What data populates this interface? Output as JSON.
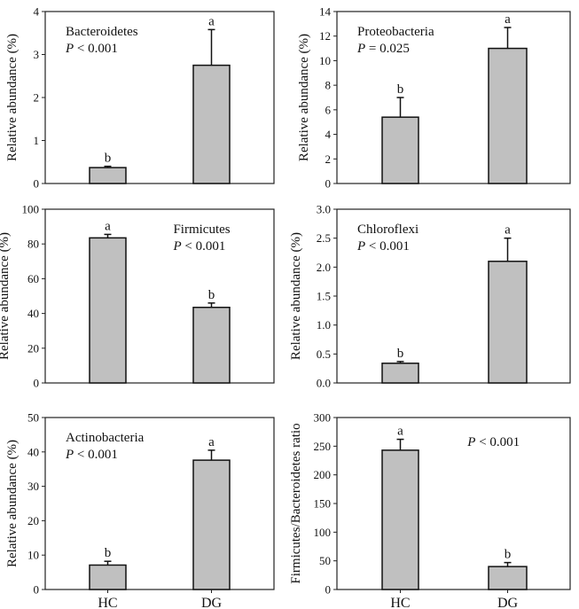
{
  "chart_data": [
    {
      "type": "bar",
      "panel": "bacteroidetes",
      "title": "Bacteroidetes",
      "p_value": "P < 0.001",
      "annotation_position": "top-left",
      "ylabel": "Relative abundance (%)",
      "ylim": [
        0,
        4
      ],
      "yticks": [
        "0",
        "1",
        "2",
        "3",
        "4"
      ],
      "categories": [
        "HC",
        "DG"
      ],
      "values": [
        0.37,
        2.75
      ],
      "error_upper": [
        0.4,
        3.58
      ],
      "sig_letters": [
        "b",
        "a"
      ],
      "show_xtick_labels": false
    },
    {
      "type": "bar",
      "panel": "proteobacteria",
      "title": "Proteobacteria",
      "p_value": "P = 0.025",
      "annotation_position": "top-left",
      "ylabel": "Relative abundance (%)",
      "ylim": [
        0,
        14
      ],
      "yticks": [
        "0",
        "2",
        "4",
        "6",
        "8",
        "10",
        "12",
        "14"
      ],
      "categories": [
        "HC",
        "DG"
      ],
      "values": [
        5.4,
        11.0
      ],
      "error_upper": [
        7.0,
        12.7
      ],
      "sig_letters": [
        "b",
        "a"
      ],
      "show_xtick_labels": false
    },
    {
      "type": "bar",
      "panel": "firmicutes",
      "title": "Firmicutes",
      "p_value": "P < 0.001",
      "annotation_position": "top-right",
      "ylabel": "Relative abundance (%)",
      "ylim": [
        0,
        100
      ],
      "yticks": [
        "0",
        "20",
        "40",
        "60",
        "80",
        "100"
      ],
      "categories": [
        "HC",
        "DG"
      ],
      "values": [
        83.5,
        43.5
      ],
      "error_upper": [
        85.5,
        46.0
      ],
      "sig_letters": [
        "a",
        "b"
      ],
      "show_xtick_labels": false
    },
    {
      "type": "bar",
      "panel": "chloroflexi",
      "title": "Chloroflexi",
      "p_value": "P < 0.001",
      "annotation_position": "top-left",
      "ylabel": "Relative abundance (%)",
      "ylim": [
        0,
        3.0
      ],
      "yticks": [
        "0.0",
        "0.5",
        "1.0",
        "1.5",
        "2.0",
        "2.5",
        "3.0"
      ],
      "categories": [
        "HC",
        "DG"
      ],
      "values": [
        0.34,
        2.1
      ],
      "error_upper": [
        0.37,
        2.5
      ],
      "sig_letters": [
        "b",
        "a"
      ],
      "show_xtick_labels": false
    },
    {
      "type": "bar",
      "panel": "actinobacteria",
      "title": "Actinobacteria",
      "p_value": "P < 0.001",
      "annotation_position": "top-left",
      "ylabel": "Relative abundance (%)",
      "ylim": [
        0,
        50
      ],
      "yticks": [
        "0",
        "10",
        "20",
        "30",
        "40",
        "50"
      ],
      "categories": [
        "HC",
        "DG"
      ],
      "values": [
        7.1,
        37.6
      ],
      "error_upper": [
        8.2,
        40.5
      ],
      "sig_letters": [
        "b",
        "a"
      ],
      "show_xtick_labels": true
    },
    {
      "type": "bar",
      "panel": "fb-ratio",
      "title": "",
      "p_value": "P < 0.001",
      "annotation_position": "top-right",
      "ylabel": "Firmicutes/Bacteroidetes ratio",
      "ylim": [
        0,
        300
      ],
      "yticks": [
        "0",
        "50",
        "100",
        "150",
        "200",
        "250",
        "300"
      ],
      "categories": [
        "HC",
        "DG"
      ],
      "values": [
        243,
        40
      ],
      "error_upper": [
        262,
        47
      ],
      "sig_letters": [
        "a",
        "b"
      ],
      "show_xtick_labels": true
    }
  ],
  "colors": {
    "bar_fill": "#c0c0c0",
    "bar_stroke": "#111111",
    "axis": "#222222"
  }
}
